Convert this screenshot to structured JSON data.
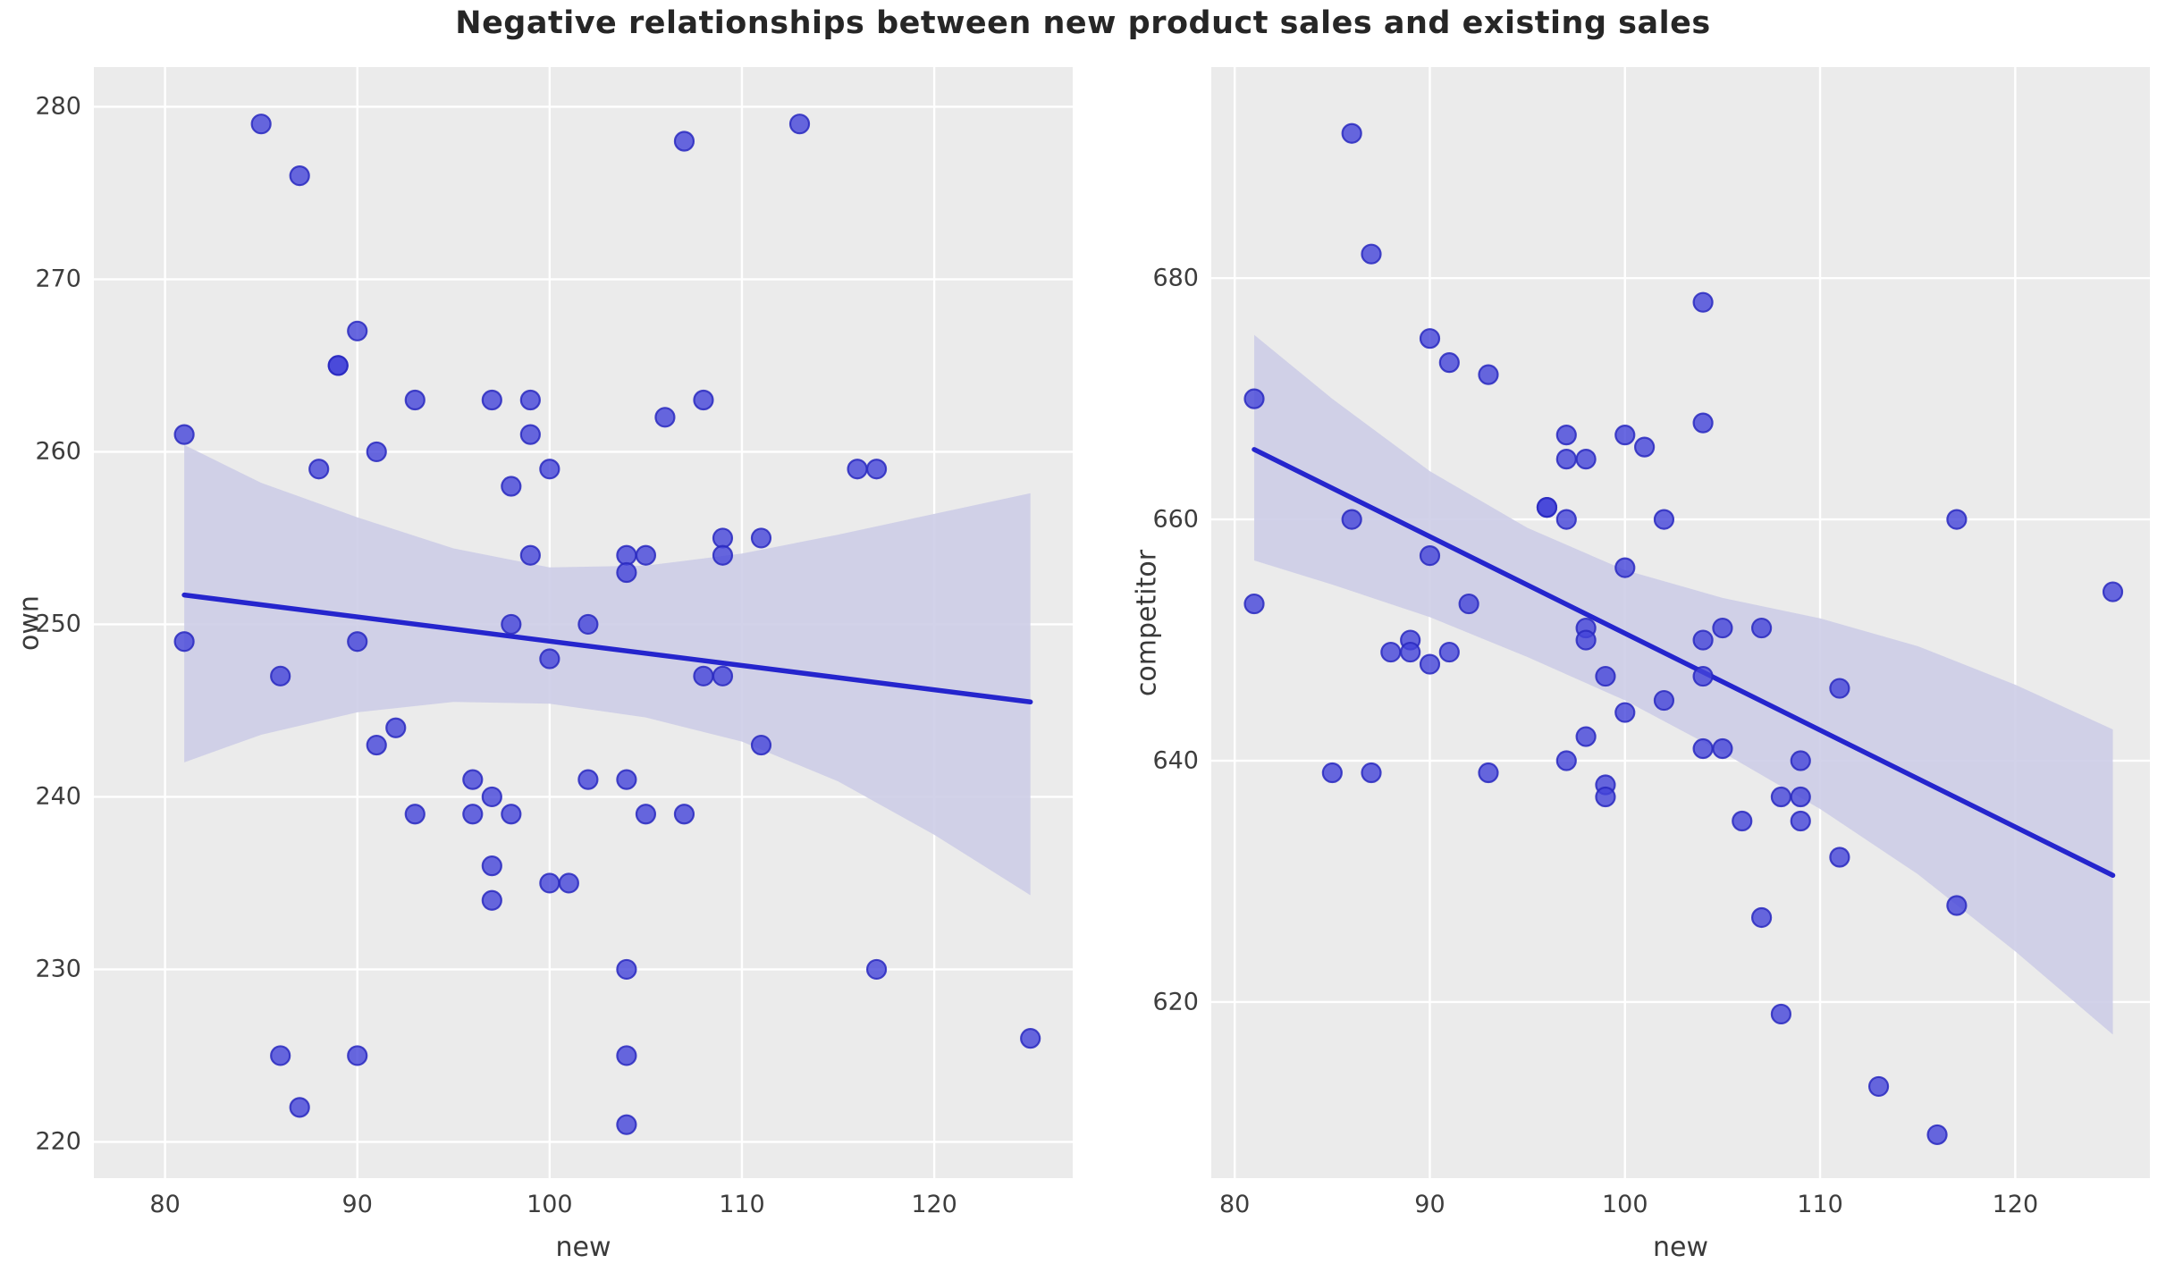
{
  "title": "Negative relationships between new product sales and existing sales",
  "colors": {
    "figure_background": "#ffffff",
    "axes_background": "#ebebeb",
    "gridline": "#ffffff",
    "point_fill": "#4343d9",
    "point_edge": "#2929c0",
    "regression_line": "#2525cd",
    "ci_band": "#cdcde7",
    "title_text": "#262626",
    "tick_text": "#3d3d3d"
  },
  "chart_data": [
    {
      "type": "scatter",
      "xlabel": "new",
      "ylabel": "own",
      "xlim": [
        76.3,
        127.2
      ],
      "ylim": [
        217.9,
        282.3
      ],
      "xticks": [
        80,
        90,
        100,
        110,
        120
      ],
      "yticks": [
        220,
        230,
        240,
        250,
        260,
        270,
        280
      ],
      "grid": true,
      "points": [
        [
          81,
          261
        ],
        [
          81,
          249
        ],
        [
          85,
          279
        ],
        [
          86,
          247
        ],
        [
          86,
          225
        ],
        [
          87,
          276
        ],
        [
          87,
          222
        ],
        [
          88,
          259
        ],
        [
          89,
          265
        ],
        [
          89,
          265
        ],
        [
          90,
          267
        ],
        [
          90,
          249
        ],
        [
          90,
          225
        ],
        [
          91,
          260
        ],
        [
          91,
          243
        ],
        [
          92,
          244
        ],
        [
          93,
          263
        ],
        [
          93,
          239
        ],
        [
          96,
          241
        ],
        [
          96,
          239
        ],
        [
          97,
          263
        ],
        [
          97,
          240
        ],
        [
          97,
          236
        ],
        [
          97,
          234
        ],
        [
          98,
          258
        ],
        [
          98,
          250
        ],
        [
          98,
          239
        ],
        [
          99,
          263
        ],
        [
          99,
          261
        ],
        [
          99,
          254
        ],
        [
          100,
          259
        ],
        [
          100,
          248
        ],
        [
          100,
          235
        ],
        [
          101,
          235
        ],
        [
          102,
          250
        ],
        [
          102,
          241
        ],
        [
          104,
          254
        ],
        [
          104,
          253
        ],
        [
          104,
          241
        ],
        [
          104,
          230
        ],
        [
          104,
          225
        ],
        [
          104,
          221
        ],
        [
          105,
          254
        ],
        [
          105,
          239
        ],
        [
          106,
          262
        ],
        [
          107,
          278
        ],
        [
          107,
          239
        ],
        [
          108,
          263
        ],
        [
          108,
          247
        ],
        [
          109,
          255
        ],
        [
          109,
          254
        ],
        [
          109,
          247
        ],
        [
          111,
          255
        ],
        [
          111,
          243
        ],
        [
          113,
          279
        ],
        [
          116,
          259
        ],
        [
          117,
          259
        ],
        [
          117,
          230
        ],
        [
          125,
          226
        ]
      ],
      "regression_line": {
        "x": [
          81,
          125
        ],
        "y": [
          251.7,
          245.5
        ]
      },
      "ci_band": {
        "x": [
          81,
          85,
          90,
          95,
          100,
          105,
          110,
          115,
          120,
          125
        ],
        "upper": [
          260.4,
          258.2,
          256.2,
          254.4,
          253.3,
          253.4,
          254.1,
          255.2,
          256.4,
          257.6
        ],
        "lower": [
          242.0,
          243.6,
          244.9,
          245.5,
          245.4,
          244.6,
          243.2,
          240.9,
          237.8,
          234.3
        ]
      }
    },
    {
      "type": "scatter",
      "xlabel": "new",
      "ylabel": "competitor",
      "xlim": [
        78.8,
        126.9
      ],
      "ylim": [
        605.4,
        697.5
      ],
      "xticks": [
        80,
        90,
        100,
        110,
        120
      ],
      "yticks": [
        620,
        640,
        660,
        680
      ],
      "grid": true,
      "points": [
        [
          81,
          670
        ],
        [
          81,
          653
        ],
        [
          85,
          639
        ],
        [
          86,
          692
        ],
        [
          86,
          660
        ],
        [
          87,
          682
        ],
        [
          87,
          639
        ],
        [
          88,
          649
        ],
        [
          89,
          650
        ],
        [
          89,
          649
        ],
        [
          90,
          675
        ],
        [
          90,
          657
        ],
        [
          90,
          648
        ],
        [
          91,
          673
        ],
        [
          91,
          649
        ],
        [
          92,
          653
        ],
        [
          93,
          672
        ],
        [
          93,
          639
        ],
        [
          96,
          661
        ],
        [
          96,
          661
        ],
        [
          97,
          667
        ],
        [
          97,
          665
        ],
        [
          97,
          660
        ],
        [
          97,
          640
        ],
        [
          98,
          665
        ],
        [
          98,
          651
        ],
        [
          98,
          650
        ],
        [
          98,
          642
        ],
        [
          99,
          647
        ],
        [
          99,
          638
        ],
        [
          99,
          637
        ],
        [
          100,
          667
        ],
        [
          100,
          656
        ],
        [
          100,
          644
        ],
        [
          101,
          666
        ],
        [
          102,
          660
        ],
        [
          102,
          645
        ],
        [
          104,
          678
        ],
        [
          104,
          668
        ],
        [
          104,
          650
        ],
        [
          104,
          647
        ],
        [
          104,
          641
        ],
        [
          105,
          651
        ],
        [
          105,
          641
        ],
        [
          106,
          635
        ],
        [
          107,
          651
        ],
        [
          107,
          627
        ],
        [
          108,
          637
        ],
        [
          108,
          619
        ],
        [
          109,
          640
        ],
        [
          109,
          637
        ],
        [
          109,
          635
        ],
        [
          111,
          646
        ],
        [
          111,
          632
        ],
        [
          113,
          613
        ],
        [
          116,
          609
        ],
        [
          117,
          660
        ],
        [
          117,
          628
        ],
        [
          125,
          654
        ]
      ],
      "regression_line": {
        "x": [
          81,
          125
        ],
        "y": [
          665.8,
          630.5
        ]
      },
      "ci_band": {
        "x": [
          81,
          85,
          90,
          95,
          100,
          105,
          110,
          115,
          120,
          125
        ],
        "upper": [
          675.3,
          670.0,
          664.0,
          659.3,
          655.8,
          653.5,
          651.8,
          649.5,
          646.3,
          642.6
        ],
        "lower": [
          656.6,
          654.6,
          651.9,
          648.6,
          645.0,
          640.7,
          636.0,
          630.6,
          624.2,
          617.3
        ]
      }
    }
  ]
}
